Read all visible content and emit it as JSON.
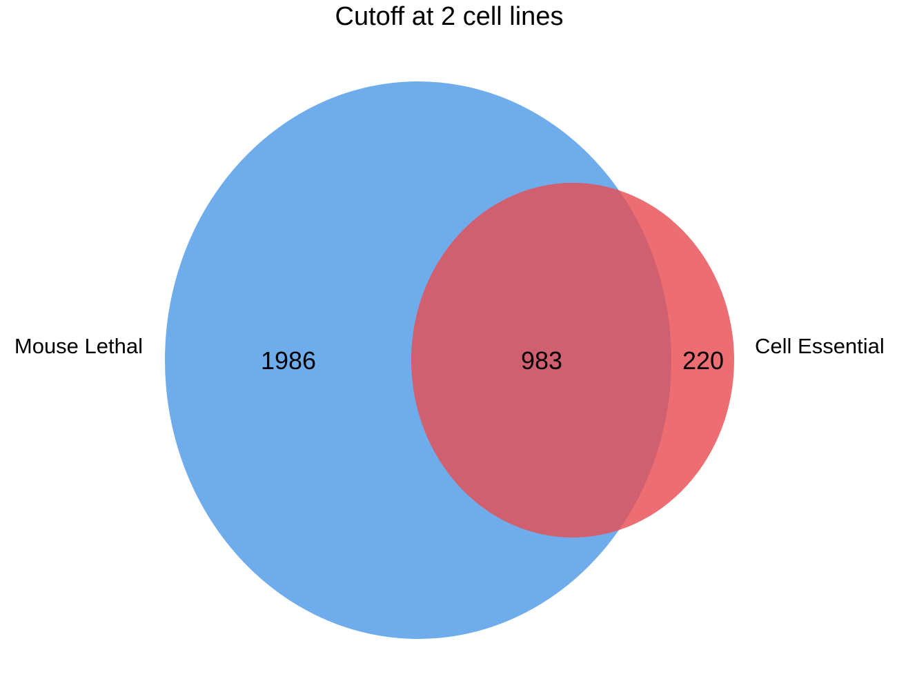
{
  "title": "Cutoff at 2 cell lines",
  "sets": [
    {
      "name": "Mouse Lethal",
      "color": "#6FACEB"
    },
    {
      "name": "Cell Essential",
      "color": "#EC6E73"
    }
  ],
  "regions": {
    "only_a": "1986",
    "intersection": "983",
    "only_b": "220"
  },
  "colors": {
    "intersection": "#D0606F"
  }
}
